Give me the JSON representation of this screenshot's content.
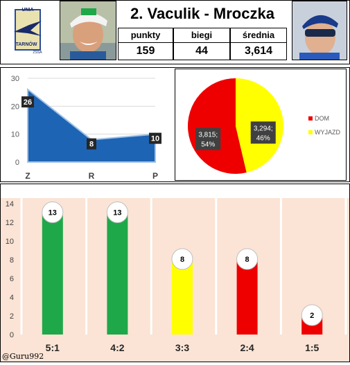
{
  "header": {
    "title": "2. Vaculik - Mroczka",
    "logo_text": [
      "UNIA",
      "TARNÓW",
      "ŻSSA"
    ],
    "stats": [
      {
        "label": "punkty",
        "value": "159"
      },
      {
        "label": "biegi",
        "value": "44"
      },
      {
        "label": "średnia",
        "value": "3,614"
      }
    ]
  },
  "chart_data": [
    {
      "type": "area",
      "categories": [
        "Z",
        "R",
        "P"
      ],
      "values": [
        26,
        8,
        10
      ],
      "yticks": [
        "0",
        "10",
        "20",
        "30"
      ],
      "ylim": [
        0,
        30
      ],
      "color": "#1e64b4"
    },
    {
      "type": "pie",
      "slices": [
        {
          "name": "DOM",
          "value": 3.815,
          "label": "3,815;",
          "pct": "54%",
          "color": "#ee0000"
        },
        {
          "name": "WYJAZD",
          "value": 3.294,
          "label": "3,294;",
          "pct": "46%",
          "color": "#ffff00"
        }
      ],
      "legend": "right"
    },
    {
      "type": "bar",
      "categories": [
        "5:1",
        "4:2",
        "3:3",
        "2:4",
        "1:5"
      ],
      "values": [
        13,
        13,
        8,
        8,
        2
      ],
      "colors": [
        "#1fa84a",
        "#1fa84a",
        "#ffff00",
        "#ee0000",
        "#ee0000"
      ],
      "yticks": [
        "0",
        "2",
        "4",
        "6",
        "8",
        "10",
        "12",
        "14"
      ],
      "ylim": [
        0,
        14
      ],
      "background": "#fbe4d5"
    }
  ],
  "footer": {
    "credit": "@Guru992"
  }
}
